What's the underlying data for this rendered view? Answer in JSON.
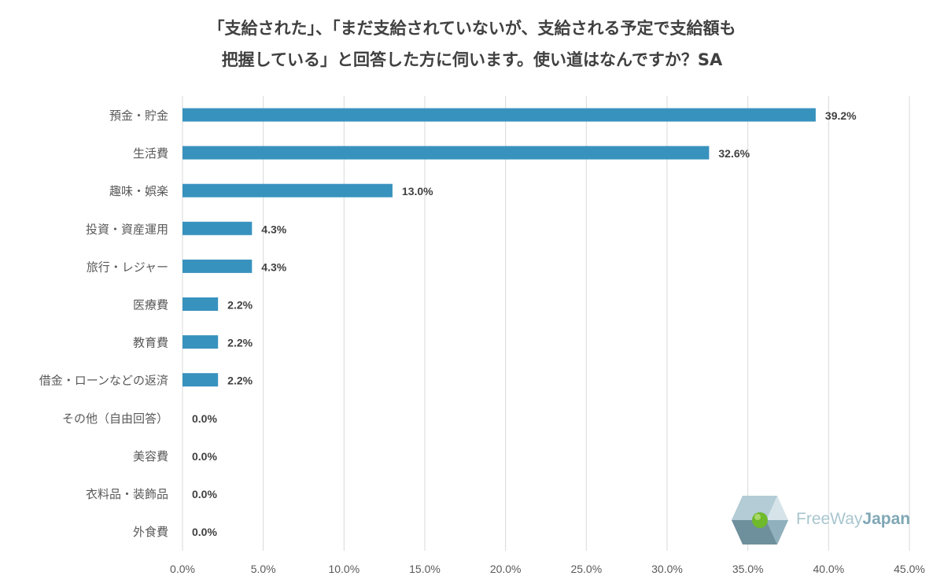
{
  "chart_data": {
    "type": "bar",
    "orientation": "horizontal",
    "title_lines": [
      "「支給された」、「まだ支給されていないが、支給される予定で支給額も",
      "把握している」と回答した方に伺います。使い道はなんですか？SA"
    ],
    "categories": [
      "預金・貯金",
      "生活費",
      "趣味・娯楽",
      "投資・資産運用",
      "旅行・レジャー",
      "医療費",
      "教育費",
      "借金・ローンなどの返済",
      "その他（自由回答）",
      "美容費",
      "衣料品・装飾品",
      "外食費"
    ],
    "values": [
      39.2,
      32.6,
      13.0,
      4.3,
      4.3,
      2.2,
      2.2,
      2.2,
      0.0,
      0.0,
      0.0,
      0.0
    ],
    "value_labels": [
      "39.2%",
      "32.6%",
      "13.0%",
      "4.3%",
      "4.3%",
      "2.2%",
      "2.2%",
      "2.2%",
      "0.0%",
      "0.0%",
      "0.0%",
      "0.0%"
    ],
    "xticks": [
      0,
      5,
      10,
      15,
      20,
      25,
      30,
      35,
      40,
      45
    ],
    "xtick_labels": [
      "0.0%",
      "5.0%",
      "10.0%",
      "15.0%",
      "20.0%",
      "25.0%",
      "30.0%",
      "35.0%",
      "40.0%",
      "45.0%"
    ],
    "xlim": [
      0,
      45
    ],
    "xlabel": "",
    "ylabel": "",
    "grid": true,
    "bar_color": "#3892be"
  },
  "logo": {
    "text_free": "FreeWay",
    "text_japan": "Japan"
  }
}
